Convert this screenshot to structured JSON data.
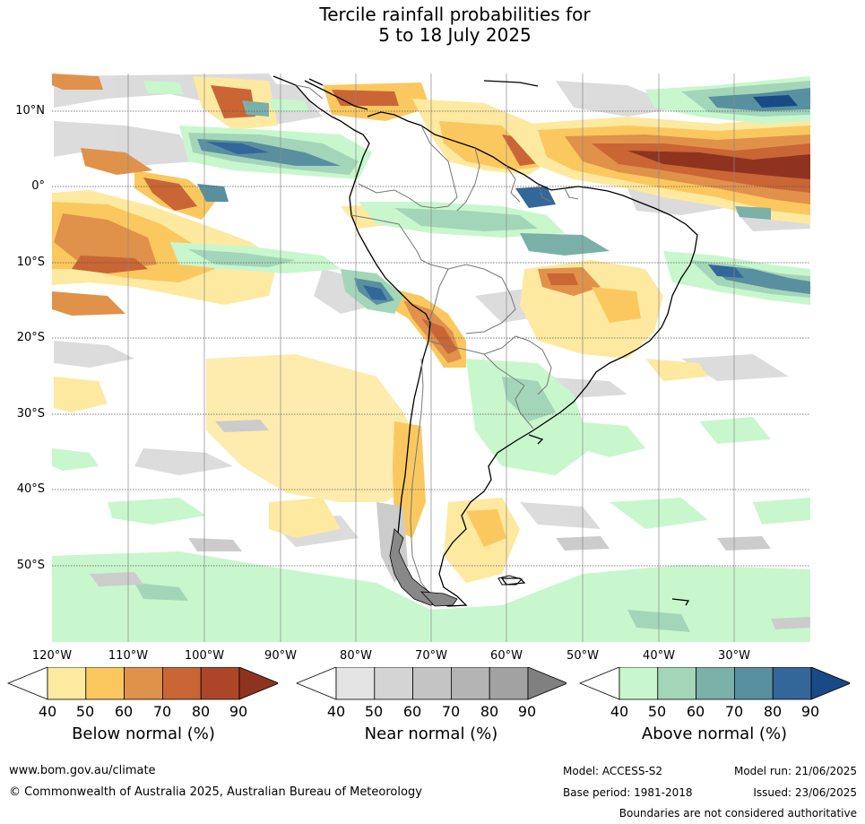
{
  "title": {
    "line1": "Tercile rainfall probabilities for",
    "line2": "5 to 18 July 2025"
  },
  "map": {
    "latitude_labels": [
      "10°N",
      "0°",
      "10°S",
      "20°S",
      "30°S",
      "40°S",
      "50°S"
    ],
    "longitude_labels": [
      "120°W",
      "110°W",
      "100°W",
      "90°W",
      "80°W",
      "70°W",
      "60°W",
      "50°W",
      "40°W",
      "30°W"
    ]
  },
  "legends": [
    {
      "title": "Below normal (%)",
      "ticks": [
        "40",
        "50",
        "60",
        "70",
        "80",
        "90"
      ],
      "colors": [
        "#ffffff",
        "#fde9a0",
        "#fbc860",
        "#e0914a",
        "#ca6535",
        "#ad4628",
        "#8f3320"
      ]
    },
    {
      "title": "Near normal (%)",
      "ticks": [
        "40",
        "50",
        "60",
        "70",
        "80",
        "90"
      ],
      "colors": [
        "#ffffff",
        "#e4e4e4",
        "#d4d4d4",
        "#c4c4c4",
        "#b4b4b4",
        "#a2a2a2",
        "#808080"
      ]
    },
    {
      "title": "Above normal (%)",
      "ticks": [
        "40",
        "50",
        "60",
        "70",
        "80",
        "90"
      ],
      "colors": [
        "#ffffff",
        "#c8f7cd",
        "#a3d6b8",
        "#7ab0a8",
        "#5990a0",
        "#336699",
        "#184a85"
      ]
    }
  ],
  "footer": {
    "website": "www.bom.gov.au/climate",
    "copyright": "© Commonwealth of Australia 2025, Australian Bureau of Meteorology",
    "model": "Model: ACCESS-S2",
    "model_run": "Model run: 21/06/2025",
    "base_period": "Base period: 1981-2018",
    "issued": "Issued: 23/06/2025",
    "disclaimer": "Boundaries are not considered authoritative"
  }
}
